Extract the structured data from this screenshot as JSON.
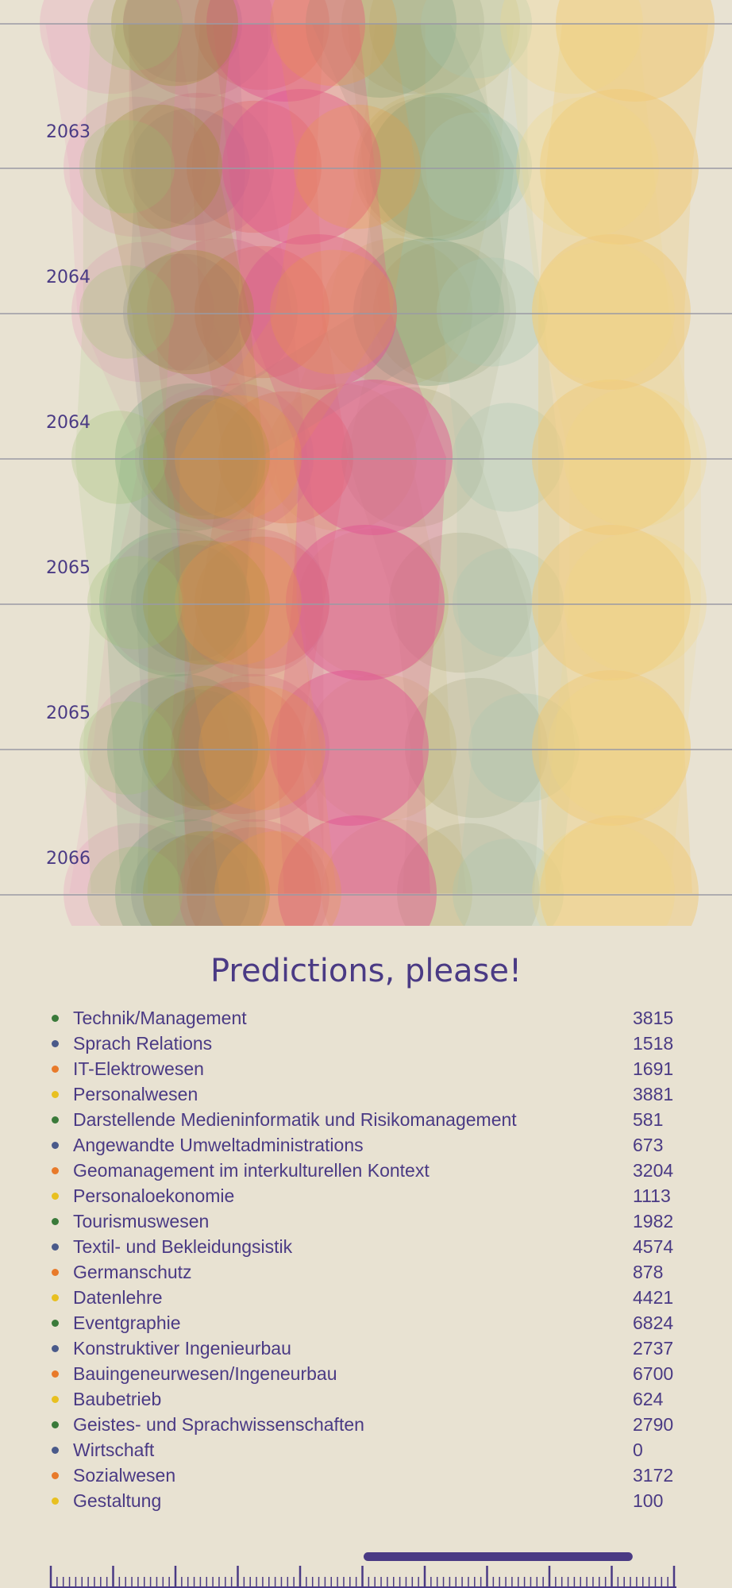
{
  "timeline_labels": [
    "2063",
    "2064",
    "2064",
    "2065",
    "2065",
    "2066"
  ],
  "title": "Predictions, please!",
  "legend": [
    {
      "name": "Technik/Management",
      "value": "3815",
      "color": "#3a7a3a"
    },
    {
      "name": "Sprach Relations",
      "value": "1518",
      "color": "#4a5a8a"
    },
    {
      "name": "IT-Elektrowesen",
      "value": "1691",
      "color": "#e87a2a"
    },
    {
      "name": "Personalwesen",
      "value": "3881",
      "color": "#e8c020"
    },
    {
      "name": "Darstellende Medieninformatik und Risikomanagement",
      "value": "581",
      "color": "#3a7a3a"
    },
    {
      "name": "Angewandte Umweltadministrations",
      "value": "673",
      "color": "#4a5a8a"
    },
    {
      "name": "Geomanagement im interkulturellen Kontext",
      "value": "3204",
      "color": "#e87a2a"
    },
    {
      "name": "Personaloekonomie",
      "value": "1113",
      "color": "#e8c020"
    },
    {
      "name": "Tourismuswesen",
      "value": "1982",
      "color": "#3a7a3a"
    },
    {
      "name": "Textil- und Bekleidungsistik",
      "value": "4574",
      "color": "#4a5a8a"
    },
    {
      "name": "Germanschutz",
      "value": "878",
      "color": "#e87a2a"
    },
    {
      "name": "Datenlehre",
      "value": "4421",
      "color": "#e8c020"
    },
    {
      "name": "Eventgraphie",
      "value": "6824",
      "color": "#3a7a3a"
    },
    {
      "name": "Konstruktiver Ingenieurbau",
      "value": "2737",
      "color": "#4a5a8a"
    },
    {
      "name": "Bauingeneurwesen/Ingeneurbau",
      "value": "6700",
      "color": "#e87a2a"
    },
    {
      "name": "Baubetrieb",
      "value": "624",
      "color": "#e8c020"
    },
    {
      "name": "Geistes- und Sprachwissenschaften",
      "value": "2790",
      "color": "#3a7a3a"
    },
    {
      "name": "Wirtschaft",
      "value": "0",
      "color": "#4a5a8a"
    },
    {
      "name": "Sozialwesen",
      "value": "3172",
      "color": "#e87a2a"
    },
    {
      "name": "Gestaltung",
      "value": "100",
      "color": "#e8c020"
    }
  ],
  "timeline": {
    "handle_start": 0.5,
    "handle_end": 0.93
  }
}
